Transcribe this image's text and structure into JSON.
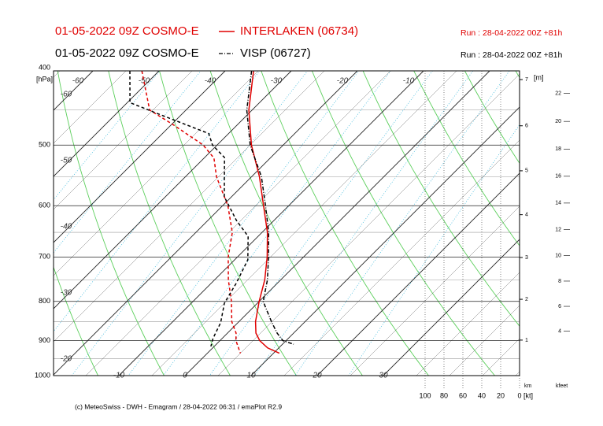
{
  "chart_data": {
    "type": "emagram",
    "series": [
      {
        "model": "01-05-2022 09Z COSMO-E",
        "name": "INTERLAKEN (06734)",
        "run": "Run : 28-04-2022 00Z +81h",
        "color": "#e00000",
        "pressure": [
          400,
          450,
          500,
          550,
          600,
          650,
          700,
          750,
          800,
          850,
          880,
          900,
          920,
          935
        ],
        "values": [
          -35.7,
          -30.5,
          -24.8,
          -18.8,
          -13.8,
          -9.2,
          -5.5,
          -2.4,
          0,
          2.5,
          4.3,
          6,
          8.3,
          10.9
        ],
        "dewpoint_pressure": [
          400,
          450,
          470,
          500,
          520,
          550,
          600,
          650,
          700,
          750,
          800,
          850,
          880,
          900,
          935
        ],
        "dewpoint": [
          -52.6,
          -45.5,
          -39.8,
          -32.1,
          -28.5,
          -25.3,
          -19.2,
          -14.5,
          -11.4,
          -7.9,
          -4.2,
          -1.1,
          1.3,
          2.4,
          5.0
        ]
      },
      {
        "model": "01-05-2022 09Z COSMO-E",
        "name": "VISP (06727)",
        "run": "Run : 28-04-2022 00Z +81h",
        "color": "#000000",
        "pressure": [
          400,
          450,
          500,
          550,
          600,
          650,
          700,
          750,
          800,
          850,
          880,
          900,
          910
        ],
        "values": [
          -36,
          -30.8,
          -25,
          -18.5,
          -13.5,
          -9,
          -5.3,
          -2,
          0.6,
          4.9,
          7.5,
          9.5,
          11.7
        ],
        "dewpoint_pressure": [
          400,
          440,
          455,
          483,
          500,
          519,
          584,
          627,
          658,
          706,
          758,
          804,
          853,
          894,
          916
        ],
        "dewpoint": [
          -54.4,
          -49.6,
          -43.7,
          -33.0,
          -30.7,
          -27.0,
          -21.1,
          -15.7,
          -11.5,
          -8.0,
          -6.2,
          -5.0,
          -2.6,
          -1.4,
          -0.5
        ]
      }
    ],
    "ylim": [
      1000,
      400
    ],
    "yticks": [
      400,
      500,
      600,
      700,
      800,
      900,
      1000
    ],
    "y_unit": "[hPa]",
    "logy": true,
    "temperature_ticks": [
      -60,
      -50,
      -40,
      -30,
      -20,
      -10,
      0,
      10,
      20,
      30
    ],
    "height_km_ticks": [
      1,
      2,
      3,
      4,
      5,
      6,
      7
    ],
    "height_unit": "[m]",
    "height_label": "km",
    "height_kfeet_ticks": [
      4,
      6,
      8,
      10,
      12,
      14,
      16,
      18,
      20,
      22
    ],
    "kfeet_label": "kfeet",
    "wind_ticks": [
      100,
      80,
      60,
      40,
      20,
      0
    ],
    "wind_unit": "[kt]",
    "footer": "(c) MeteoSwiss - DWH - Emagram / 28-04-2022 06:31 / emaPlot R2.9"
  }
}
